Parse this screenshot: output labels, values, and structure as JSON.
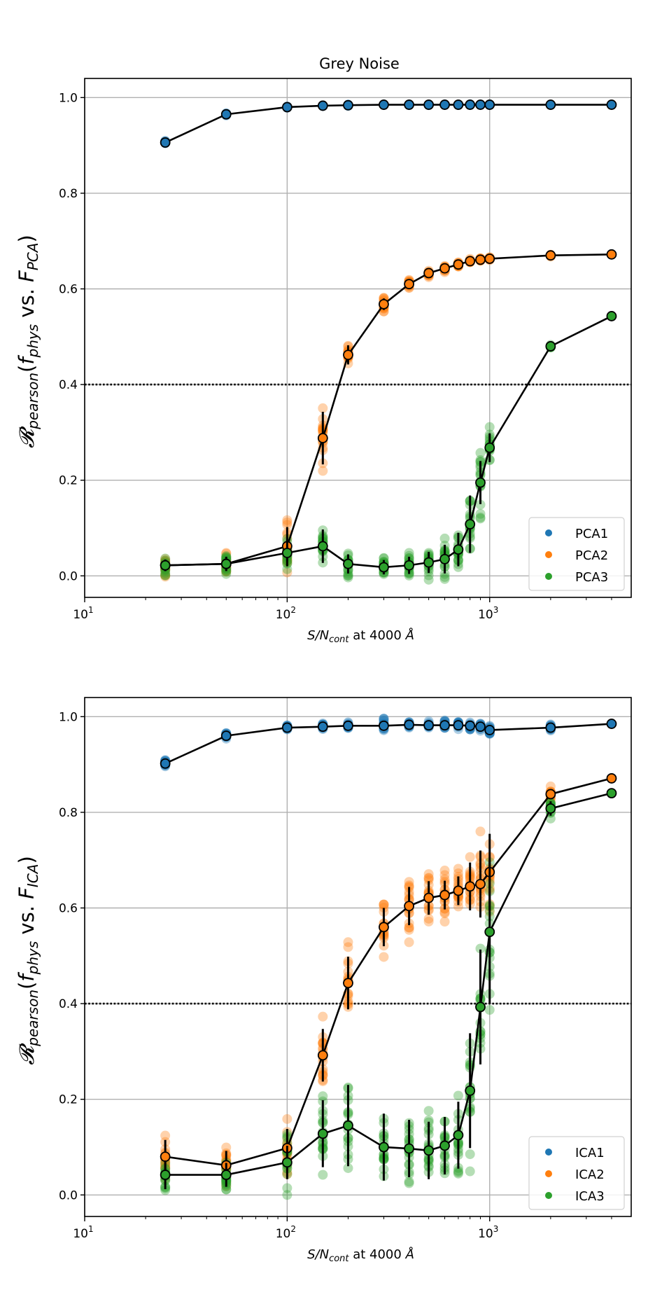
{
  "chart_data": [
    {
      "type": "scatter",
      "title": "Grey Noise",
      "ylabel_main": "𝓡",
      "ylabel_sub": "pearson",
      "ylabel_open": "(",
      "ylabel_f": "f",
      "ylabel_f_sub": "phys",
      "ylabel_vs": " vs. ",
      "ylabel_F": "F",
      "ylabel_F_sub": "PCA",
      "ylabel_close": ")",
      "xlabel_pre": "S/N",
      "xlabel_sub": "cont",
      "xlabel_post": " at 4000 ",
      "xlabel_unit": "Å",
      "xscale": "log",
      "xlim": [
        10,
        5000
      ],
      "ylim": [
        -0.045,
        1.04
      ],
      "xticks": [
        10,
        100,
        1000
      ],
      "xtick_base": "10",
      "xtick_exps": [
        "1",
        "2",
        "3"
      ],
      "yticks": [
        0.0,
        0.2,
        0.4,
        0.6,
        0.8,
        1.0
      ],
      "ytick_labels": [
        "0.0",
        "0.2",
        "0.4",
        "0.6",
        "0.8",
        "1.0"
      ],
      "threshold": 0.4,
      "grid": true,
      "legend_position": "lower-right",
      "x": [
        25,
        50,
        100,
        150,
        200,
        300,
        400,
        500,
        600,
        700,
        800,
        900,
        1000,
        2000,
        4000
      ],
      "series": [
        {
          "name": "PCA1",
          "color": "#1f77b4",
          "median": [
            0.906,
            0.965,
            0.98,
            0.983,
            0.984,
            0.985,
            0.985,
            0.985,
            0.985,
            0.985,
            0.985,
            0.985,
            0.985,
            0.985,
            0.985
          ],
          "spread": [
            0.006,
            0.004,
            0.002,
            0.002,
            0.002,
            0.001,
            0.001,
            0.001,
            0.001,
            0.001,
            0.001,
            0.001,
            0.001,
            0.001,
            0.0
          ],
          "err": [
            0.005,
            0.004,
            0.002,
            0.001,
            0.001,
            0.001,
            0.001,
            0.001,
            0.001,
            0.001,
            0.001,
            0.001,
            0.001,
            0.001,
            0.0
          ]
        },
        {
          "name": "PCA2",
          "color": "#ff7f0e",
          "median": [
            0.022,
            0.025,
            0.062,
            0.288,
            0.462,
            0.568,
            0.61,
            0.633,
            0.643,
            0.651,
            0.658,
            0.661,
            0.663,
            0.67,
            0.672
          ],
          "spread": [
            0.025,
            0.03,
            0.08,
            0.09,
            0.035,
            0.025,
            0.015,
            0.01,
            0.01,
            0.008,
            0.006,
            0.005,
            0.004,
            0.003,
            0.0
          ],
          "err": [
            0.012,
            0.012,
            0.04,
            0.055,
            0.02,
            0.012,
            0.008,
            0.006,
            0.005,
            0.004,
            0.003,
            0.003,
            0.002,
            0.002,
            0.0
          ]
        },
        {
          "name": "PCA3",
          "color": "#2ca02c",
          "median": [
            0.022,
            0.025,
            0.048,
            0.062,
            0.025,
            0.018,
            0.022,
            0.028,
            0.035,
            0.055,
            0.108,
            0.195,
            0.268,
            0.48,
            0.543
          ],
          "spread": [
            0.03,
            0.03,
            0.05,
            0.055,
            0.04,
            0.03,
            0.035,
            0.045,
            0.06,
            0.06,
            0.09,
            0.09,
            0.05,
            0.005,
            0.0
          ],
          "err": [
            0.012,
            0.015,
            0.028,
            0.035,
            0.02,
            0.015,
            0.018,
            0.022,
            0.03,
            0.035,
            0.06,
            0.045,
            0.03,
            0.003,
            0.0
          ]
        }
      ]
    },
    {
      "type": "scatter",
      "title": "",
      "ylabel_main": "𝓡",
      "ylabel_sub": "pearson",
      "ylabel_open": "(",
      "ylabel_f": "f",
      "ylabel_f_sub": "phys",
      "ylabel_vs": " vs. ",
      "ylabel_F": "F",
      "ylabel_F_sub": "ICA",
      "ylabel_close": ")",
      "xlabel_pre": "S/N",
      "xlabel_sub": "cont",
      "xlabel_post": " at 4000 ",
      "xlabel_unit": "Å",
      "xscale": "log",
      "xlim": [
        10,
        5000
      ],
      "ylim": [
        -0.045,
        1.04
      ],
      "xticks": [
        10,
        100,
        1000
      ],
      "xtick_base": "10",
      "xtick_exps": [
        "1",
        "2",
        "3"
      ],
      "yticks": [
        0.0,
        0.2,
        0.4,
        0.6,
        0.8,
        1.0
      ],
      "ytick_labels": [
        "0.0",
        "0.2",
        "0.4",
        "0.6",
        "0.8",
        "1.0"
      ],
      "threshold": 0.4,
      "grid": true,
      "legend_position": "lower-right",
      "x": [
        25,
        50,
        100,
        150,
        200,
        300,
        400,
        500,
        600,
        700,
        800,
        900,
        1000,
        2000,
        4000
      ],
      "series": [
        {
          "name": "ICA1",
          "color": "#1f77b4",
          "median": [
            0.902,
            0.96,
            0.977,
            0.979,
            0.981,
            0.981,
            0.983,
            0.982,
            0.982,
            0.982,
            0.981,
            0.979,
            0.972,
            0.977,
            0.985
          ],
          "spread": [
            0.012,
            0.01,
            0.008,
            0.01,
            0.01,
            0.02,
            0.012,
            0.012,
            0.012,
            0.015,
            0.015,
            0.015,
            0.015,
            0.01,
            0.0
          ],
          "err": [
            0.006,
            0.005,
            0.004,
            0.004,
            0.004,
            0.006,
            0.005,
            0.005,
            0.005,
            0.005,
            0.005,
            0.006,
            0.006,
            0.004,
            0.0
          ]
        },
        {
          "name": "ICA2",
          "color": "#ff7f0e",
          "median": [
            0.08,
            0.062,
            0.098,
            0.292,
            0.443,
            0.56,
            0.604,
            0.621,
            0.627,
            0.636,
            0.645,
            0.65,
            0.675,
            0.838,
            0.871
          ],
          "spread": [
            0.07,
            0.07,
            0.1,
            0.12,
            0.12,
            0.1,
            0.09,
            0.08,
            0.07,
            0.07,
            0.09,
            0.13,
            0.12,
            0.02,
            0.0
          ],
          "err": [
            0.035,
            0.03,
            0.04,
            0.055,
            0.055,
            0.04,
            0.04,
            0.035,
            0.03,
            0.03,
            0.05,
            0.07,
            0.08,
            0.01,
            0.0
          ]
        },
        {
          "name": "ICA3",
          "color": "#2ca02c",
          "median": [
            0.042,
            0.042,
            0.068,
            0.128,
            0.145,
            0.1,
            0.097,
            0.093,
            0.103,
            0.125,
            0.218,
            0.393,
            0.55,
            0.808,
            0.84
          ],
          "spread": [
            0.05,
            0.05,
            0.08,
            0.12,
            0.12,
            0.1,
            0.1,
            0.1,
            0.1,
            0.12,
            0.2,
            0.22,
            0.25,
            0.025,
            0.0
          ],
          "err": [
            0.03,
            0.025,
            0.035,
            0.07,
            0.085,
            0.07,
            0.06,
            0.06,
            0.06,
            0.07,
            0.12,
            0.12,
            0.15,
            0.015,
            0.0
          ]
        }
      ]
    }
  ]
}
